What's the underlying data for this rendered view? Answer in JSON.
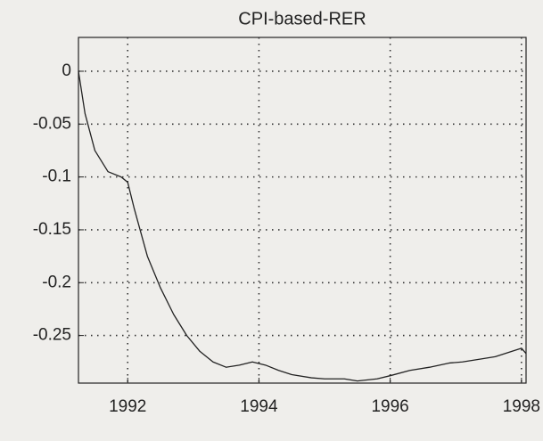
{
  "chart_data": {
    "type": "line",
    "title": "CPI-based-RER",
    "x": [
      1991.25,
      1991.35,
      1991.5,
      1991.7,
      1991.9,
      1992.0,
      1992.1,
      1992.3,
      1992.5,
      1992.7,
      1992.9,
      1993.1,
      1993.3,
      1993.5,
      1993.7,
      1993.9,
      1994.1,
      1994.3,
      1994.5,
      1994.8,
      1995.0,
      1995.3,
      1995.5,
      1995.8,
      1996.0,
      1996.3,
      1996.6,
      1996.9,
      1997.1,
      1997.4,
      1997.6,
      1997.8,
      1998.0,
      1998.07
    ],
    "series": [
      {
        "name": "CPI-based-RER",
        "color": "#222222",
        "values": [
          0,
          -0.04,
          -0.075,
          -0.095,
          -0.1,
          -0.105,
          -0.13,
          -0.175,
          -0.205,
          -0.23,
          -0.25,
          -0.265,
          -0.275,
          -0.28,
          -0.278,
          -0.275,
          -0.278,
          -0.283,
          -0.287,
          -0.29,
          -0.291,
          -0.291,
          -0.293,
          -0.291,
          -0.288,
          -0.283,
          -0.28,
          -0.276,
          -0.275,
          -0.272,
          -0.27,
          -0.266,
          -0.262,
          -0.267
        ]
      }
    ],
    "xlim": [
      1991.25,
      1998.07
    ],
    "xticks": [
      1992,
      1994,
      1996,
      1998
    ],
    "ylim": [
      -0.295,
      0.032
    ],
    "yticks": [
      0,
      -0.05,
      -0.1,
      -0.15,
      -0.2,
      -0.25
    ],
    "grid": true
  }
}
